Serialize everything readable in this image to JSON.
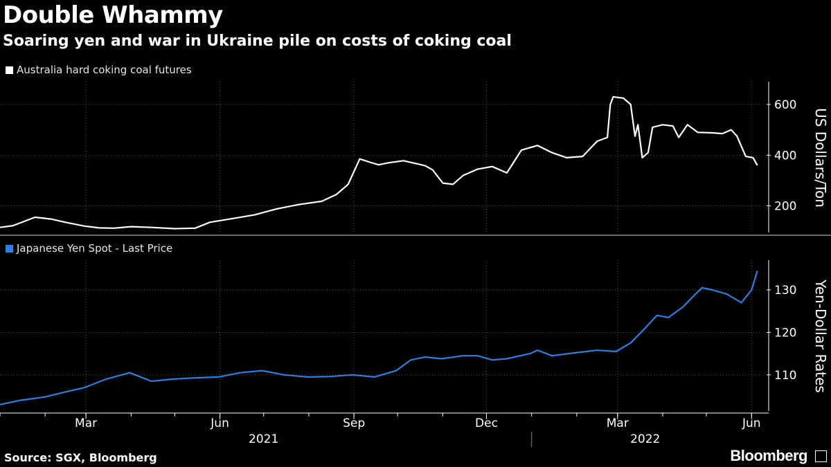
{
  "title": "Double Whammy",
  "subtitle": "Soaring yen and war in Ukraine pile on costs of coking coal",
  "source": "Source: SGX, Bloomberg",
  "brand": "Bloomberg",
  "colors": {
    "background": "#000000",
    "coal_series": "#ffffff",
    "yen_series": "#2f7fe0",
    "grid": "#555555"
  },
  "chart_data": [
    {
      "type": "line",
      "title": "Australia hard coking coal futures",
      "legend": "Australia hard coking coal futures",
      "ylabel": "US Dollars/Ton",
      "ylim": [
        95,
        690
      ],
      "yticks": [
        200,
        400,
        600
      ],
      "xlim": [
        "2021-01-01",
        "2022-06-08"
      ],
      "series": [
        {
          "name": "Australia hard coking coal futures",
          "x": [
            "2021-01-01",
            "2021-01-10",
            "2021-01-25",
            "2021-02-05",
            "2021-02-15",
            "2021-02-28",
            "2021-03-10",
            "2021-03-20",
            "2021-04-01",
            "2021-04-15",
            "2021-05-01",
            "2021-05-15",
            "2021-05-25",
            "2021-06-10",
            "2021-06-25",
            "2021-07-10",
            "2021-07-25",
            "2021-08-10",
            "2021-08-20",
            "2021-08-28",
            "2021-09-05",
            "2021-09-12",
            "2021-09-18",
            "2021-09-25",
            "2021-10-05",
            "2021-10-15",
            "2021-10-20",
            "2021-10-25",
            "2021-11-01",
            "2021-11-08",
            "2021-11-15",
            "2021-11-25",
            "2021-12-05",
            "2021-12-15",
            "2021-12-25",
            "2022-01-05",
            "2022-01-15",
            "2022-01-25",
            "2022-02-05",
            "2022-02-15",
            "2022-02-22",
            "2022-02-24",
            "2022-02-26",
            "2022-03-05",
            "2022-03-10",
            "2022-03-13",
            "2022-03-15",
            "2022-03-18",
            "2022-03-22",
            "2022-03-25",
            "2022-04-01",
            "2022-04-08",
            "2022-04-12",
            "2022-04-18",
            "2022-04-25",
            "2022-05-05",
            "2022-05-12",
            "2022-05-18",
            "2022-05-22",
            "2022-05-28",
            "2022-06-02",
            "2022-06-05"
          ],
          "values": [
            115,
            122,
            155,
            148,
            135,
            120,
            113,
            112,
            118,
            115,
            110,
            112,
            135,
            150,
            165,
            188,
            205,
            218,
            245,
            285,
            385,
            372,
            362,
            370,
            378,
            365,
            358,
            342,
            290,
            285,
            320,
            345,
            355,
            330,
            420,
            438,
            410,
            390,
            395,
            455,
            470,
            600,
            630,
            625,
            600,
            475,
            520,
            390,
            410,
            510,
            520,
            515,
            470,
            520,
            490,
            488,
            485,
            500,
            475,
            395,
            390,
            360
          ]
        }
      ]
    },
    {
      "type": "line",
      "title": "Japanese Yen Spot - Last Price",
      "legend": "Japanese Yen Spot - Last Price",
      "ylabel": "Yen-Dollar Rates",
      "ylim": [
        101.5,
        137
      ],
      "yticks": [
        110,
        120,
        130
      ],
      "xlim": [
        "2021-01-01",
        "2022-06-08"
      ],
      "series": [
        {
          "name": "Japanese Yen Spot - Last Price",
          "x": [
            "2021-01-01",
            "2021-01-15",
            "2021-02-01",
            "2021-02-15",
            "2021-02-28",
            "2021-03-15",
            "2021-03-31",
            "2021-04-15",
            "2021-04-30",
            "2021-05-15",
            "2021-05-31",
            "2021-06-15",
            "2021-06-30",
            "2021-07-15",
            "2021-07-31",
            "2021-08-15",
            "2021-08-31",
            "2021-09-15",
            "2021-09-30",
            "2021-10-10",
            "2021-10-20",
            "2021-10-31",
            "2021-11-15",
            "2021-11-25",
            "2021-12-05",
            "2021-12-15",
            "2021-12-31",
            "2022-01-05",
            "2022-01-15",
            "2022-01-31",
            "2022-02-15",
            "2022-02-28",
            "2022-03-10",
            "2022-03-20",
            "2022-03-28",
            "2022-04-05",
            "2022-04-15",
            "2022-04-22",
            "2022-04-28",
            "2022-05-05",
            "2022-05-15",
            "2022-05-25",
            "2022-06-01",
            "2022-06-05"
          ],
          "values": [
            103.0,
            104.0,
            104.8,
            106.0,
            107.0,
            109.0,
            110.5,
            108.5,
            109.0,
            109.3,
            109.5,
            110.5,
            111.0,
            110.0,
            109.5,
            109.6,
            110.0,
            109.5,
            111.0,
            113.5,
            114.2,
            113.8,
            114.5,
            114.5,
            113.5,
            113.8,
            115.0,
            115.8,
            114.5,
            115.2,
            115.8,
            115.5,
            117.5,
            121.0,
            124.0,
            123.5,
            126.0,
            128.5,
            130.5,
            130.0,
            129.0,
            127.0,
            130.0,
            134.5
          ]
        }
      ]
    }
  ],
  "x_axis": {
    "tick_labels": [
      "Mar",
      "Jun",
      "Sep",
      "Dec",
      "Mar",
      "Jun"
    ],
    "tick_dates": [
      "2021-03-01",
      "2021-06-01",
      "2021-09-01",
      "2021-12-01",
      "2022-03-01",
      "2022-06-01"
    ],
    "year_labels": [
      "2021",
      "2022"
    ]
  }
}
